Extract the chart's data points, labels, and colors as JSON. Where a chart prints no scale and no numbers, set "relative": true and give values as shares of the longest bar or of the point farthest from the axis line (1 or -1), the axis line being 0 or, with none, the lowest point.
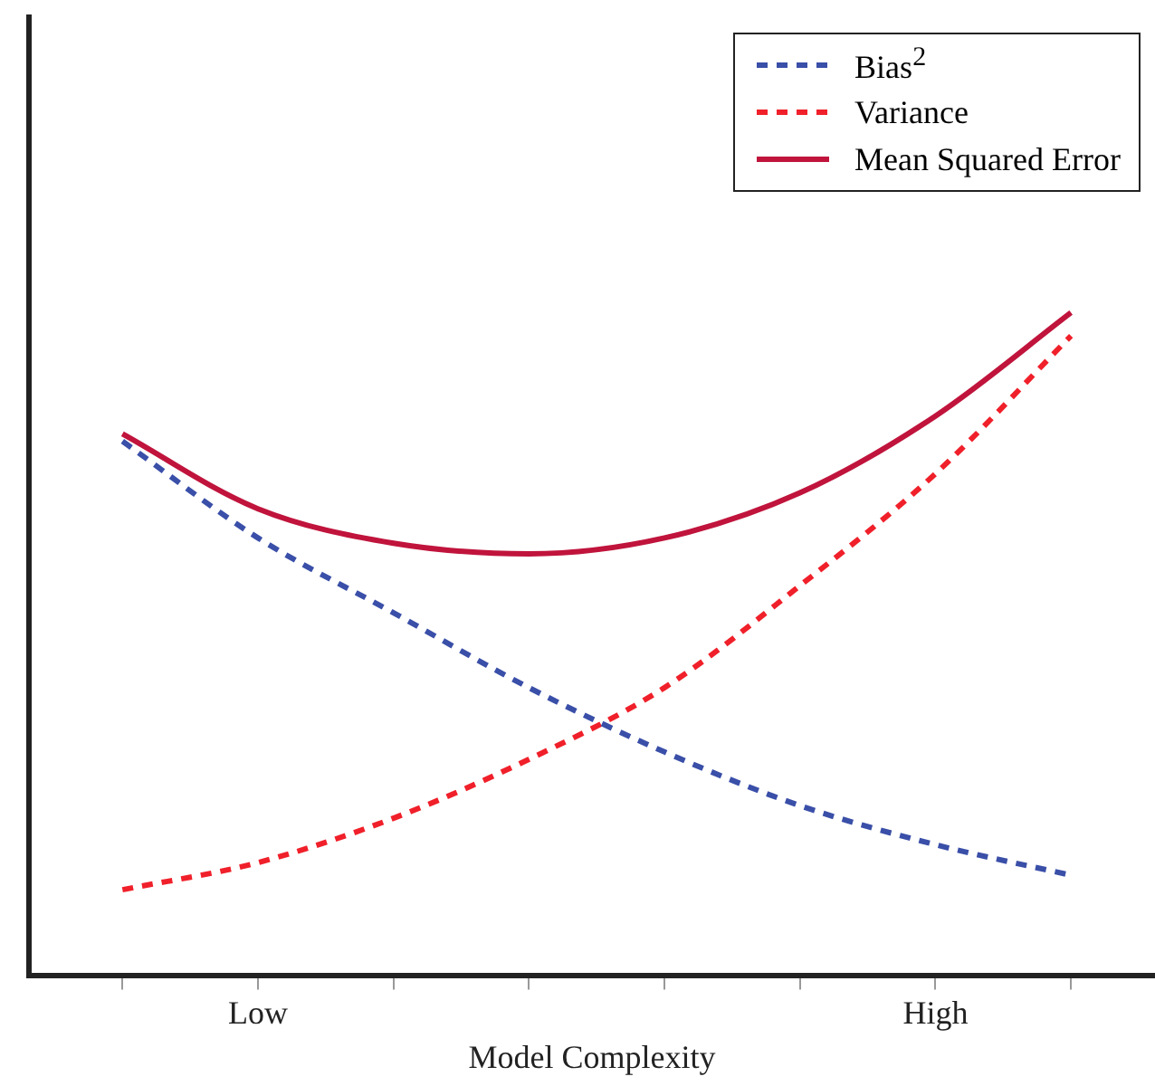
{
  "chart_data": {
    "type": "line",
    "xlabel": "Model Complexity",
    "relative": true,
    "legend": "top right",
    "grid": false,
    "marker": "none",
    "categories": [
      null,
      "Low",
      null,
      null,
      null,
      null,
      "High",
      null
    ],
    "series": [
      {
        "name": "Bias$^{2}$",
        "color": "#3a4fa8",
        "line_style": "dashed",
        "values": [
          0.806,
          0.66,
          0.547,
          0.434,
          0.337,
          0.256,
          0.197,
          0.151
        ]
      },
      {
        "name": "Variance",
        "color": "#f0202a",
        "line_style": "dashed",
        "values": [
          0.129,
          0.17,
          0.237,
          0.326,
          0.434,
          0.588,
          0.757,
          0.965
        ]
      },
      {
        "name": "Mean  Squared Error",
        "color": "#c0143c",
        "line_style": "solid",
        "values": [
          0.817,
          0.704,
          0.652,
          0.636,
          0.66,
          0.728,
          0.844,
          1
        ]
      }
    ]
  }
}
